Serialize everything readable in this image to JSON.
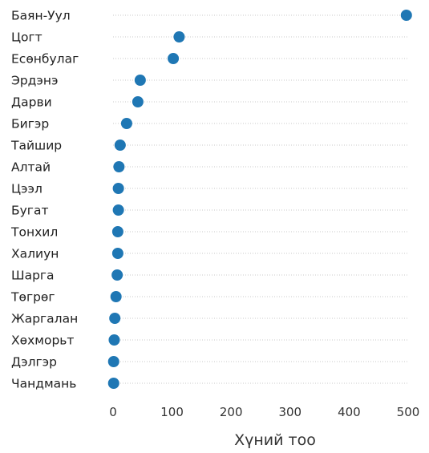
{
  "chart_data": {
    "type": "scatter",
    "orientation": "horizontal",
    "categories": [
      "Баян-Уул",
      "Цогт",
      "Есөнбулаг",
      "Эрдэнэ",
      "Дарви",
      "Бигэр",
      "Тайшир",
      "Алтай",
      "Цээл",
      "Бугат",
      "Тонхил",
      "Халиун",
      "Шарга",
      "Төгрөг",
      "Жаргалан",
      "Хөхморьт",
      "Дэлгэр",
      "Чандмань"
    ],
    "values": [
      497,
      112,
      102,
      46,
      42,
      23,
      12,
      10,
      9,
      9,
      8,
      8,
      7,
      5,
      3,
      2,
      1,
      1
    ],
    "xlabel": "Хүний тоо",
    "ylabel": "",
    "title": "",
    "xlim": [
      0,
      500
    ],
    "xticks": [
      "0",
      "100",
      "200",
      "300",
      "400",
      "500"
    ],
    "grid": "horizontal dotted",
    "legend": "none",
    "point_color": "#1f77b4"
  }
}
